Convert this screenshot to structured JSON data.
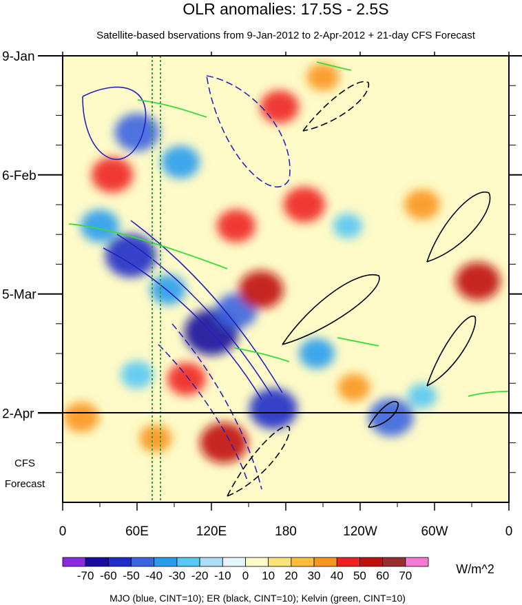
{
  "chart_data": {
    "type": "heatmap",
    "title": "OLR anomalies: 17.5S - 2.5S",
    "subtitle": "Satellite-based bservations from 9-Jan-2012 to 2-Apr-2012 + 21-day CFS Forecast",
    "x_axis": {
      "ticks": [
        {
          "lon": 0,
          "label": "0"
        },
        {
          "lon": 60,
          "label": "60E"
        },
        {
          "lon": 120,
          "label": "120E"
        },
        {
          "lon": 180,
          "label": "180"
        },
        {
          "lon": 240,
          "label": "120W"
        },
        {
          "lon": 300,
          "label": "60W"
        },
        {
          "lon": 360,
          "label": "0"
        }
      ],
      "range": [
        0,
        360
      ]
    },
    "y_axis": {
      "ticks": [
        {
          "day": 0,
          "label": "9-Jan"
        },
        {
          "day": 28,
          "label": "6-Feb"
        },
        {
          "day": 56,
          "label": "5-Mar"
        },
        {
          "day": 84,
          "label": "2-Apr"
        }
      ],
      "range_days": [
        0,
        105
      ],
      "observation_end_day": 84,
      "forecast_label_line1": "CFS",
      "forecast_label_line2": "Forecast"
    },
    "colorbar": {
      "units": "W/m^2",
      "labels": [
        "-70",
        "-60",
        "-50",
        "-40",
        "-30",
        "-20",
        "-10",
        "0",
        "10",
        "20",
        "30",
        "40",
        "50",
        "60",
        "70"
      ],
      "colors": [
        "#8a2be2",
        "#1a0a9e",
        "#1f2dc8",
        "#3a64e0",
        "#2a9cf0",
        "#55c8f5",
        "#a9ddf8",
        "#e4f6fc",
        "#fefbc8",
        "#fde27a",
        "#fcbd3a",
        "#f9951d",
        "#ee2222",
        "#c01010",
        "#9a2f2f",
        "#f57ad4"
      ]
    },
    "footnote": "MJO (blue, CINT=10); ER (black, CINT=10); Kelvin (green, CINT=10)",
    "contour_sets": [
      {
        "name": "MJO",
        "color": "#2222bb"
      },
      {
        "name": "ER",
        "color": "#000000"
      },
      {
        "name": "Kelvin",
        "color": "#33dd33"
      }
    ],
    "hovmoller_anomalies": [
      {
        "lon": 120,
        "day": 65,
        "value": -65
      },
      {
        "lon": 55,
        "day": 47,
        "value": -60
      },
      {
        "lon": 60,
        "day": 18,
        "value": -50
      },
      {
        "lon": 170,
        "day": 83,
        "value": -55
      },
      {
        "lon": 265,
        "day": 85,
        "value": -50
      },
      {
        "lon": 140,
        "day": 60,
        "value": -45
      },
      {
        "lon": 205,
        "day": 70,
        "value": -35
      },
      {
        "lon": 30,
        "day": 40,
        "value": -40
      },
      {
        "lon": 95,
        "day": 25,
        "value": -40
      },
      {
        "lon": 85,
        "day": 55,
        "value": -35
      },
      {
        "lon": 60,
        "day": 75,
        "value": -30
      },
      {
        "lon": 290,
        "day": 80,
        "value": -25
      },
      {
        "lon": 230,
        "day": 40,
        "value": -25
      },
      {
        "lon": 140,
        "day": 40,
        "value": 40
      },
      {
        "lon": 160,
        "day": 55,
        "value": 50
      },
      {
        "lon": 195,
        "day": 35,
        "value": 45
      },
      {
        "lon": 175,
        "day": 12,
        "value": 40
      },
      {
        "lon": 130,
        "day": 91,
        "value": 55
      },
      {
        "lon": 100,
        "day": 76,
        "value": 40
      },
      {
        "lon": 40,
        "day": 28,
        "value": 45
      },
      {
        "lon": 335,
        "day": 53,
        "value": 50
      },
      {
        "lon": 15,
        "day": 85,
        "value": 35
      },
      {
        "lon": 290,
        "day": 35,
        "value": 35
      },
      {
        "lon": 235,
        "day": 78,
        "value": 30
      },
      {
        "lon": 75,
        "day": 90,
        "value": 30
      },
      {
        "lon": 210,
        "day": 5,
        "value": 30
      }
    ]
  }
}
